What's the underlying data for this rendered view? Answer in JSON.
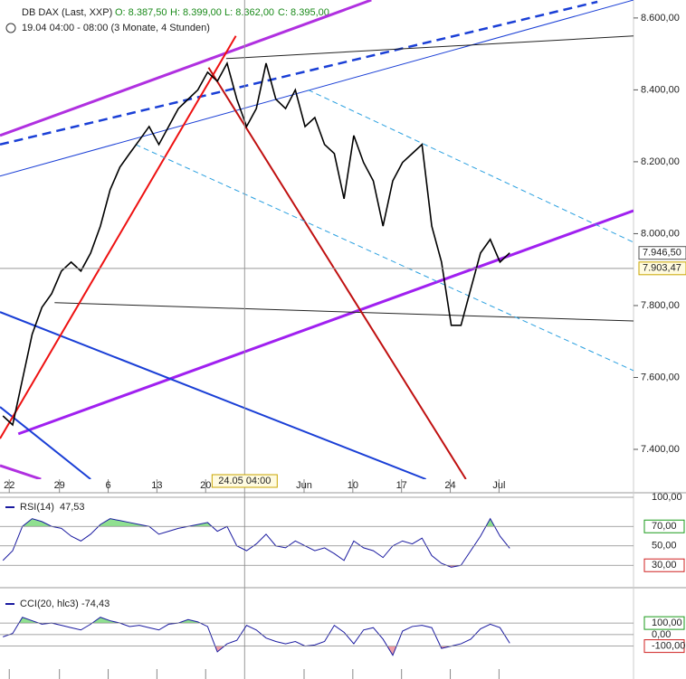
{
  "chart_data": {
    "type": "line",
    "title": "DB DAX (Last, XXP)",
    "ohlc": [
      "O: 8.387,50",
      "H: 8.399,00",
      "L: 8.362,00",
      "C: 8.395,00"
    ],
    "subtitle": "19.04 04:00 - 08:00 (3 Monate, 4 Stunden)",
    "xlim": [
      -0.3,
      64.7
    ],
    "xticks": [
      {
        "value": 0.65,
        "label": "22"
      },
      {
        "value": 5.8,
        "label": "29"
      },
      {
        "value": 10.8,
        "label": "6"
      },
      {
        "value": 15.8,
        "label": "13"
      },
      {
        "value": 20.8,
        "label": "20"
      },
      {
        "value": 30.9,
        "label": "Jun"
      },
      {
        "value": 35.9,
        "label": "10"
      },
      {
        "value": 40.9,
        "label": "17"
      },
      {
        "value": 45.9,
        "label": "24"
      },
      {
        "value": 50.9,
        "label": "Jul"
      }
    ],
    "crosshair": {
      "x": 24.8,
      "label": "24.05 04:00",
      "price": 7903.47,
      "price_label": "7.903,47"
    },
    "last_price": {
      "value": 7946.5,
      "label": "7.946,50"
    },
    "ylim": [
      7317,
      8650
    ],
    "yticks": [
      {
        "value": 7400,
        "label": "7.400,00"
      },
      {
        "value": 7600,
        "label": "7.600,00"
      },
      {
        "value": 7800,
        "label": "7.800,00"
      },
      {
        "value": 8000,
        "label": "8.000,00"
      },
      {
        "value": 8200,
        "label": "8.200,00"
      },
      {
        "value": 8400,
        "label": "8.400,00"
      },
      {
        "value": 8600,
        "label": "8.600,00"
      }
    ],
    "series": [
      {
        "color": "#000000",
        "values": [
          7493,
          7468,
          7594,
          7720,
          7795,
          7833,
          7896,
          7921,
          7896,
          7946,
          8021,
          8122,
          8185,
          8223,
          8260,
          8298,
          8248,
          8298,
          8348,
          8374,
          8400,
          8449,
          8424,
          8474,
          8374,
          8298,
          8348,
          8474,
          8374,
          8348,
          8400,
          8298,
          8323,
          8248,
          8223,
          8097,
          8273,
          8198,
          8147,
          8021,
          8147,
          8198,
          8223,
          8248,
          8021,
          7921,
          7745,
          7745,
          7846,
          7946,
          7984,
          7921,
          7946.5
        ]
      }
    ],
    "trendlines": [
      {
        "color": "#a020f0",
        "width": 3,
        "points": [
          [
            1.58,
            7443
          ],
          [
            64.7,
            8064
          ]
        ]
      },
      {
        "color": "#b030e0",
        "width": 3,
        "points": [
          [
            -0.3,
            8273
          ],
          [
            37.8,
            8650
          ]
        ]
      },
      {
        "color": "#b030e0",
        "width": 3,
        "points": [
          [
            -0.3,
            7355
          ],
          [
            3.9,
            7317
          ]
        ]
      },
      {
        "color": "#1a3fd6",
        "width": 2.5,
        "dash": "10,6",
        "points": [
          [
            -0.3,
            8248
          ],
          [
            61.0,
            8645
          ]
        ]
      },
      {
        "color": "#1a3fd6",
        "width": 1,
        "points": [
          [
            -0.3,
            8160
          ],
          [
            64.7,
            8650
          ]
        ]
      },
      {
        "color": "#222222",
        "width": 1,
        "points": [
          [
            22.9,
            8487
          ],
          [
            64.7,
            8550
          ]
        ]
      },
      {
        "color": "#222222",
        "width": 1,
        "points": [
          [
            5.3,
            7808
          ],
          [
            64.7,
            7757
          ]
        ]
      },
      {
        "color": "#1a3fd6",
        "width": 2,
        "points": [
          [
            -0.3,
            7782
          ],
          [
            43.4,
            7317
          ]
        ]
      },
      {
        "color": "#1a3fd6",
        "width": 2,
        "points": [
          [
            -0.3,
            7518
          ],
          [
            9.0,
            7317
          ]
        ]
      },
      {
        "color": "#ee1111",
        "width": 2,
        "points": [
          [
            -0.3,
            7430
          ],
          [
            23.9,
            8550
          ]
        ]
      },
      {
        "color": "#c01010",
        "width": 2,
        "points": [
          [
            21.1,
            8462
          ],
          [
            47.5,
            7317
          ]
        ]
      },
      {
        "color": "#2aa0e0",
        "width": 1,
        "dash": "6,4",
        "points": [
          [
            31.3,
            8400
          ],
          [
            64.7,
            7976
          ]
        ]
      },
      {
        "color": "#2aa0e0",
        "width": 1,
        "dash": "6,4",
        "points": [
          [
            13.6,
            8248
          ],
          [
            64.7,
            7619
          ]
        ]
      }
    ],
    "indicators": [
      {
        "name": "RSI(14)",
        "value_label": "47,53",
        "color": "#1a1aa0",
        "ylim": [
          14.4,
          100
        ],
        "yticks": [
          {
            "value": 100,
            "label": "100,00"
          },
          {
            "value": 70,
            "label": "70,00"
          },
          {
            "value": 50,
            "label": "50,00"
          },
          {
            "value": 30,
            "label": "30,00"
          }
        ],
        "upper": 70,
        "lower": 30,
        "values": [
          35,
          45,
          70,
          78,
          75,
          70,
          68,
          60,
          55,
          62,
          72,
          78,
          76,
          74,
          72,
          70,
          62,
          65,
          68,
          70,
          72,
          74,
          65,
          70,
          50,
          45,
          52,
          62,
          50,
          48,
          55,
          50,
          45,
          48,
          42,
          35,
          55,
          48,
          45,
          38,
          50,
          55,
          52,
          58,
          40,
          32,
          28,
          30,
          45,
          60,
          78,
          60,
          47.53
        ]
      },
      {
        "name": "CCI(20, hlc3)",
        "value_label": "-74,43",
        "color": "#1a1aa0",
        "ylim": [
          -315,
          352
        ],
        "yticks": [
          {
            "value": 100,
            "label": "100,00"
          },
          {
            "value": 0,
            "label": "0,00"
          },
          {
            "value": -100,
            "label": "-100,00"
          }
        ],
        "upper": 100,
        "lower": -100,
        "values": [
          -20,
          10,
          150,
          120,
          90,
          100,
          80,
          60,
          40,
          90,
          150,
          120,
          100,
          70,
          80,
          60,
          40,
          90,
          100,
          130,
          110,
          70,
          -150,
          -80,
          -50,
          80,
          40,
          -30,
          -60,
          -80,
          -60,
          -100,
          -90,
          -60,
          80,
          20,
          -80,
          40,
          60,
          -40,
          -180,
          30,
          70,
          80,
          60,
          -120,
          -100,
          -80,
          -40,
          50,
          90,
          60,
          -74.43
        ]
      }
    ]
  }
}
